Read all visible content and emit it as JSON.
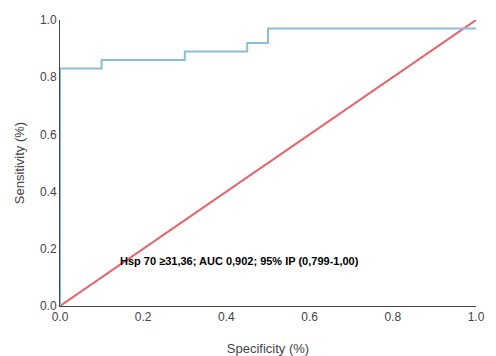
{
  "chart_data": {
    "type": "line",
    "xlabel": "Specificity (%)",
    "ylabel": "Sensitivity (%)",
    "annotation": "Hsp 70 ≥31,36; AUC 0,902; 95% IP (0,799-1,00)",
    "series": [
      {
        "color": "#e8626a",
        "x": [
          0.0,
          1.0
        ],
        "values": [
          0.0,
          1.0
        ]
      },
      {
        "color": "#8bbdd9",
        "x": [
          0.0,
          0.0,
          0.1,
          0.1,
          0.3,
          0.3,
          0.45,
          0.45,
          0.5,
          0.5,
          0.65,
          0.65,
          1.0,
          1.0
        ],
        "values": [
          0.0,
          0.83,
          0.83,
          0.86,
          0.86,
          0.89,
          0.89,
          0.92,
          0.92,
          0.97,
          0.97,
          0.97,
          0.97,
          0.97
        ]
      }
    ],
    "xlim": [
      0.0,
      1.0
    ],
    "ylim": [
      0.0,
      1.0
    ],
    "xticks": [
      {
        "value": 0.0,
        "label": "0.0"
      },
      0.2,
      0.4,
      0.6,
      0.8,
      {
        "value": 1.0,
        "label": "1.0"
      }
    ],
    "yticks": [
      {
        "value": 0.0,
        "label": "0.0"
      },
      0.2,
      0.4,
      0.6,
      0.8,
      {
        "value": 1.0,
        "label": "1.0"
      }
    ],
    "grid": false
  }
}
